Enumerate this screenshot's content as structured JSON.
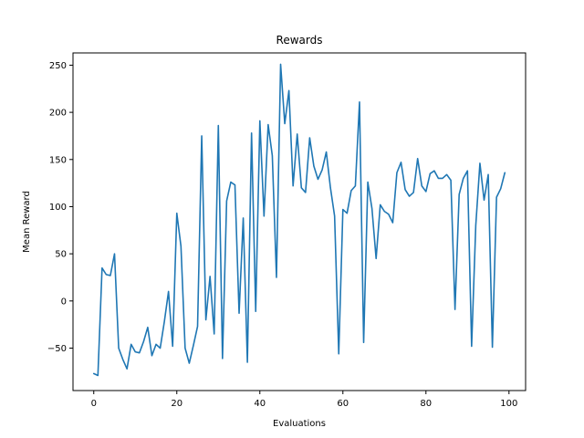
{
  "chart_data": {
    "type": "line",
    "title": "Rewards",
    "xlabel": "Evaluations",
    "ylabel": "Mean Reward",
    "xlim": [
      -5,
      104
    ],
    "ylim": [
      -95,
      263
    ],
    "xticks": [
      0,
      20,
      40,
      60,
      80,
      100
    ],
    "yticks": [
      -50,
      0,
      50,
      100,
      150,
      200,
      250
    ],
    "grid": false,
    "series_color": "#1f77b4",
    "series": [
      {
        "values": [
          -77,
          -79,
          35,
          28,
          27,
          50,
          -50,
          -62,
          -72,
          -46,
          -54,
          -55,
          -43,
          -28,
          -58,
          -46,
          -50,
          -22,
          10,
          -48,
          93,
          58,
          -50,
          -66,
          -47,
          -27,
          175,
          -20,
          26,
          -35,
          186,
          -61,
          106,
          126,
          123,
          -13,
          88,
          -65,
          178,
          -11,
          191,
          90,
          187,
          154,
          25,
          251,
          188,
          223,
          122,
          177,
          120,
          115,
          173,
          143,
          129,
          139,
          158,
          120,
          90,
          -56,
          97,
          93,
          117,
          122,
          211,
          -44,
          126,
          98,
          45,
          102,
          95,
          92,
          83,
          136,
          147,
          118,
          111,
          115,
          151,
          122,
          116,
          135,
          138,
          130,
          130,
          134,
          128,
          -9,
          113,
          130,
          138,
          -48,
          80,
          146,
          107,
          134,
          -49,
          110,
          119,
          136
        ]
      }
    ]
  }
}
